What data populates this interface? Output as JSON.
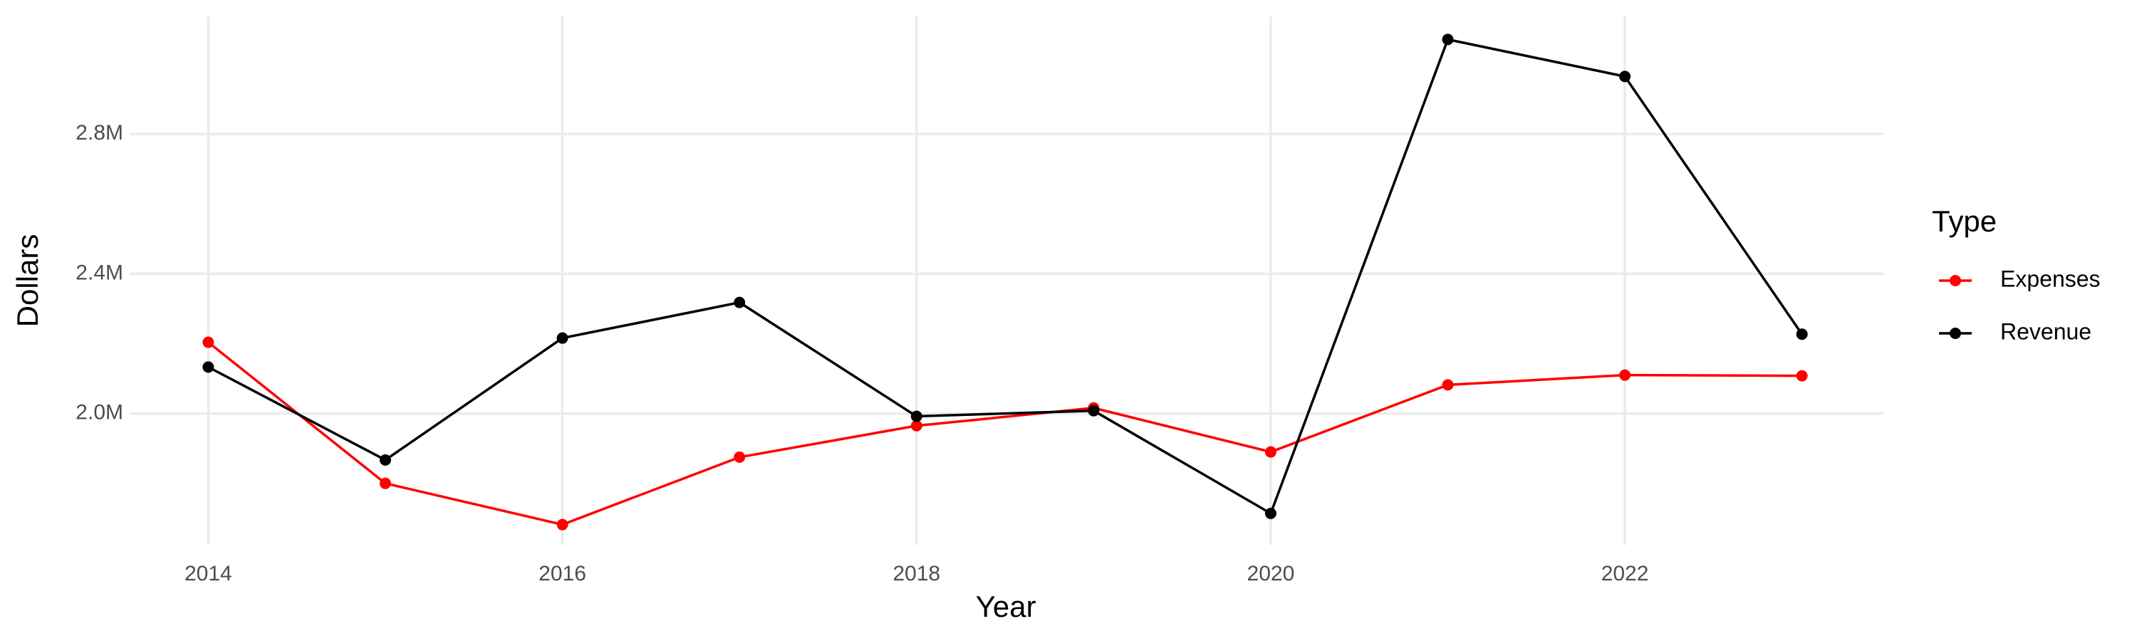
{
  "chart_data": {
    "type": "line",
    "x_label": "Year",
    "y_label": "Dollars",
    "x": [
      2014,
      2015,
      2016,
      2017,
      2018,
      2019,
      2020,
      2021,
      2022,
      2023
    ],
    "series": [
      {
        "name": "Expenses",
        "color": "#ff0000",
        "values": [
          2204000,
          1800000,
          1682000,
          1875000,
          1965000,
          2016000,
          1890000,
          2082000,
          2110000,
          2108000
        ]
      },
      {
        "name": "Revenue",
        "color": "#000000",
        "values": [
          2133000,
          1867000,
          2216000,
          2318000,
          1992000,
          2008000,
          1714000,
          3071000,
          2965000,
          2227000
        ]
      }
    ],
    "xlim": [
      2013.56,
      2023.46
    ],
    "xticks": [
      2014,
      2016,
      2018,
      2020,
      2022
    ],
    "ylim": [
      1624000,
      3137000
    ],
    "yticks": [
      {
        "value": 2000000,
        "label": "2.0M"
      },
      {
        "value": 2400000,
        "label": "2.4M"
      },
      {
        "value": 2800000,
        "label": "2.8M"
      }
    ],
    "grid": true,
    "legend_title": "Type",
    "legend_position": "right"
  }
}
